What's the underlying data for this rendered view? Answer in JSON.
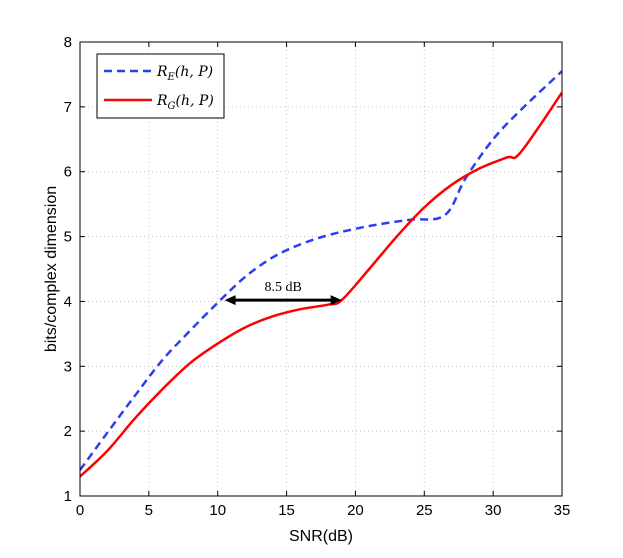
{
  "chart_data": {
    "type": "line",
    "title": "",
    "xlabel": "SNR(dB)",
    "ylabel": "bits/complex dimension",
    "xlim": [
      0,
      35
    ],
    "ylim": [
      1,
      8
    ],
    "xticks": [
      0,
      5,
      10,
      15,
      20,
      25,
      30,
      35
    ],
    "yticks": [
      1,
      2,
      3,
      4,
      5,
      6,
      7,
      8
    ],
    "grid": true,
    "legend_position": "top-left",
    "series": [
      {
        "name": "R_E(h, P)",
        "legend_label": "R",
        "legend_subscript": "E",
        "legend_args": "(h, P)",
        "color": "#2b3ef0",
        "style": "dashed",
        "x": [
          0,
          2,
          4,
          6,
          8,
          10,
          12,
          14,
          16,
          18,
          20,
          22,
          24,
          26.5,
          28,
          30,
          32,
          35
        ],
        "y": [
          1.4,
          1.98,
          2.55,
          3.1,
          3.55,
          3.98,
          4.38,
          4.68,
          4.88,
          5.02,
          5.12,
          5.2,
          5.26,
          5.33,
          5.9,
          6.5,
          6.95,
          7.55
        ]
      },
      {
        "name": "R_G(h, P)",
        "legend_label": "R",
        "legend_subscript": "G",
        "legend_args": "(h, P)",
        "color": "#ff0000",
        "style": "solid",
        "x": [
          0,
          2,
          4,
          6,
          8,
          10,
          12,
          14,
          16,
          18,
          19,
          21,
          23,
          25,
          27,
          29,
          31,
          32,
          35
        ],
        "y": [
          1.3,
          1.7,
          2.2,
          2.65,
          3.05,
          3.35,
          3.6,
          3.77,
          3.88,
          3.95,
          4.02,
          4.5,
          5.0,
          5.45,
          5.8,
          6.05,
          6.22,
          6.3,
          7.22
        ]
      }
    ],
    "annotations": [
      {
        "text": "8.5 dB",
        "type": "double-arrow",
        "x_start": 10.5,
        "x_end": 19,
        "y": 4.02
      }
    ]
  }
}
